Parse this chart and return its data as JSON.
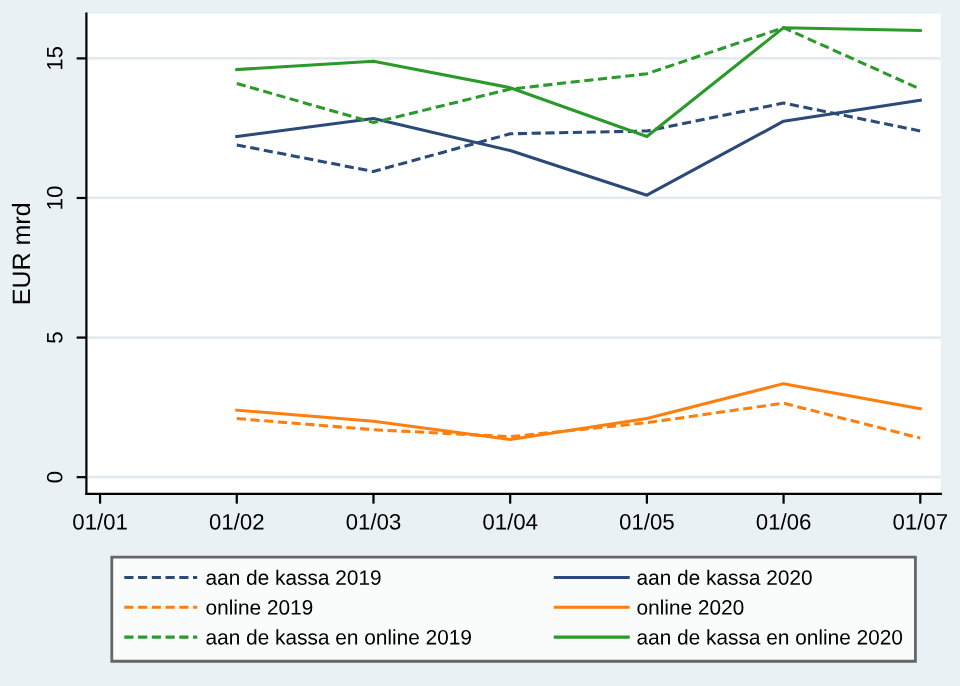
{
  "chart_data": {
    "type": "line",
    "ylabel": "EUR mrd",
    "categories": [
      "01/01",
      "01/02",
      "01/03",
      "01/04",
      "01/05",
      "01/06",
      "01/07"
    ],
    "ylim": [
      -0.6,
      16.6
    ],
    "yticks": [
      0,
      5,
      10,
      15
    ],
    "grid": "y",
    "legend": "bottom",
    "series": [
      {
        "name": "aan de kassa 2019",
        "color": "#2b4a78",
        "line_style": "dashed",
        "values": [
          null,
          11.9,
          10.95,
          12.3,
          12.4,
          13.4,
          12.4
        ]
      },
      {
        "name": "aan de kassa 2020",
        "color": "#2b4a78",
        "line_style": "solid",
        "values": [
          null,
          12.2,
          12.85,
          11.7,
          10.1,
          12.75,
          13.5
        ]
      },
      {
        "name": "online 2019",
        "color": "#ff7f0e",
        "line_style": "dashed",
        "values": [
          null,
          2.1,
          1.7,
          1.45,
          1.95,
          2.65,
          1.4
        ]
      },
      {
        "name": "online 2020",
        "color": "#ff7f0e",
        "line_style": "solid",
        "values": [
          null,
          2.4,
          2.0,
          1.35,
          2.1,
          3.35,
          2.45
        ]
      },
      {
        "name": "aan de kassa en online 2019",
        "color": "#2a9a2a",
        "line_style": "dashed",
        "values": [
          null,
          14.1,
          12.7,
          13.9,
          14.45,
          16.1,
          13.9
        ]
      },
      {
        "name": "aan de kassa en online 2020",
        "color": "#2a9a2a",
        "line_style": "solid",
        "values": [
          null,
          14.6,
          14.9,
          13.95,
          12.2,
          16.1,
          16.0
        ]
      }
    ]
  }
}
